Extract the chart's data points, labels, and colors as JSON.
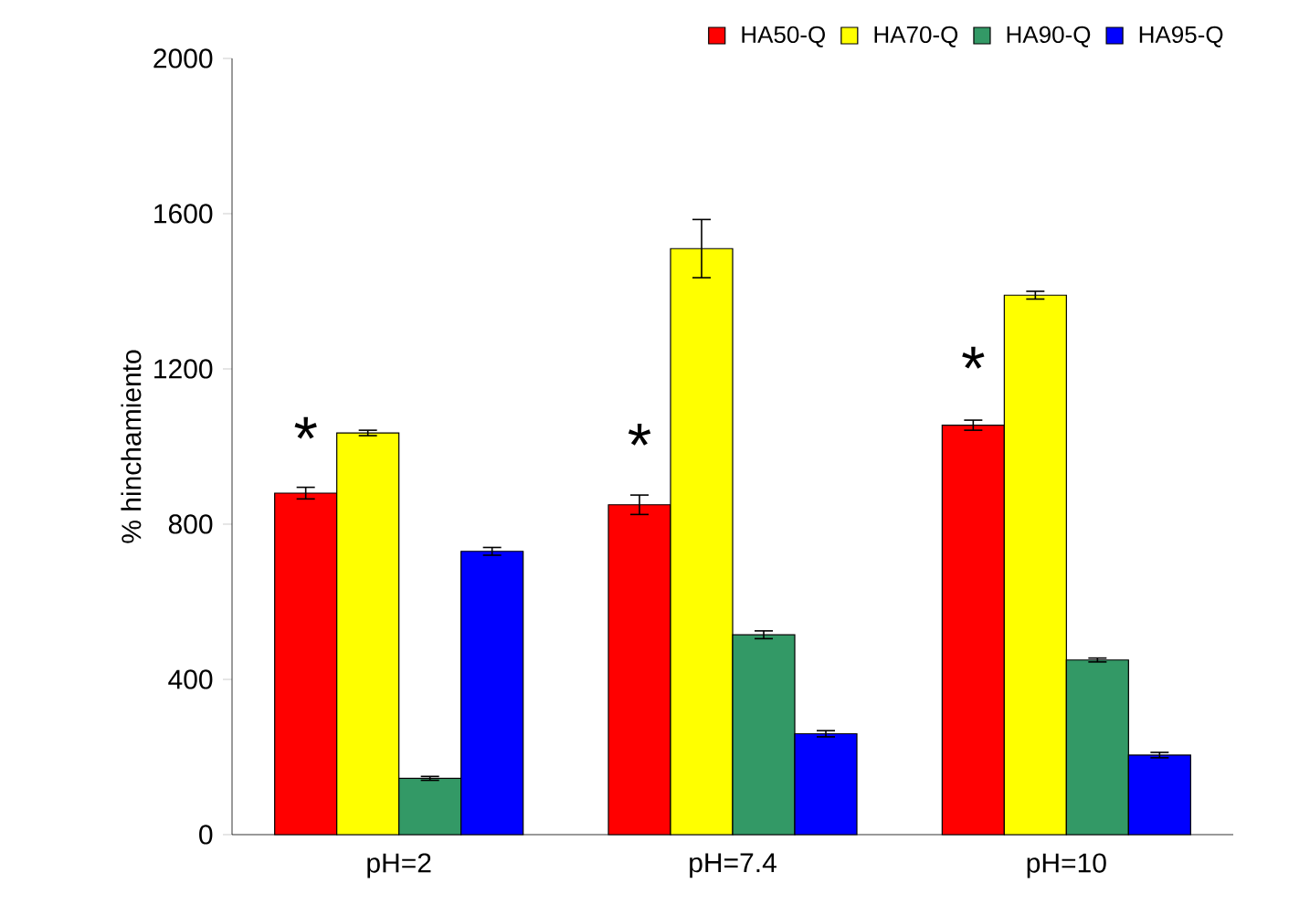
{
  "chart_data": {
    "type": "bar",
    "ylabel": "% hinchamiento",
    "categories": [
      "pH=2",
      "pH=7.4",
      "pH=10"
    ],
    "series": [
      {
        "name": "HA50-Q",
        "color": "#ff0000",
        "values": [
          880,
          850,
          1055
        ],
        "errors": [
          15,
          25,
          13
        ]
      },
      {
        "name": "HA70-Q",
        "color": "#ffff00",
        "values": [
          1035,
          1510,
          1390
        ],
        "errors": [
          7,
          75,
          10
        ]
      },
      {
        "name": "HA90-Q",
        "color": "#339966",
        "values": [
          145,
          515,
          450
        ],
        "errors": [
          5,
          10,
          5
        ]
      },
      {
        "name": "HA95-Q",
        "color": "#0000ff",
        "values": [
          730,
          260,
          205
        ],
        "errors": [
          10,
          8,
          7
        ]
      }
    ],
    "ylim": [
      0,
      2000
    ],
    "yticks": [
      0,
      400,
      800,
      1200,
      1600,
      2000
    ],
    "grid": false,
    "legend": "top right",
    "annotations": [
      {
        "text": "*",
        "x": "pH=2",
        "y": 965
      },
      {
        "text": "*",
        "x": "pH=7.4",
        "y": 948
      },
      {
        "text": "*",
        "x": "pH=10",
        "y": 1146
      }
    ]
  }
}
